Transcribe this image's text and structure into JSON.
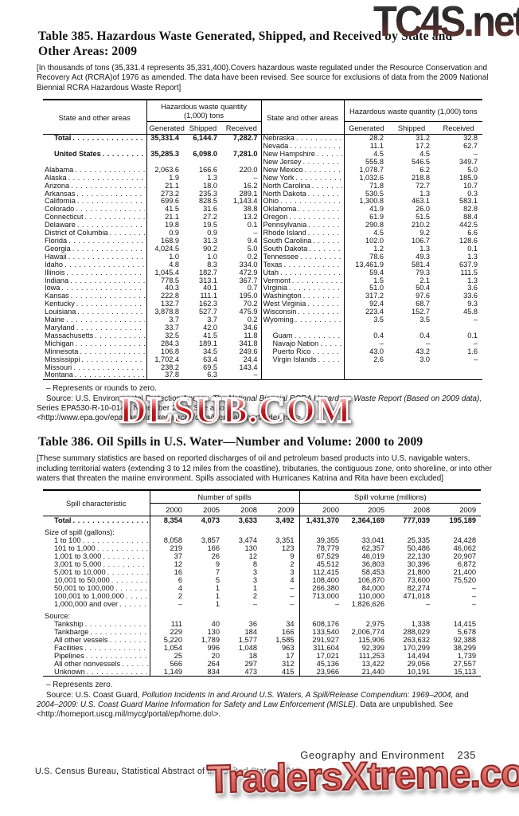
{
  "watermarks": {
    "top": "TC4S.net",
    "middle": "DLSUB.COM",
    "bottom": "TradersXtreme.com"
  },
  "colors": {
    "dlsub_red": "#c11820",
    "traders_coral": "#d65f5c",
    "tc4s_maroon": "#8a5048"
  },
  "table385": {
    "title": "Table 385. Hazardous Waste Generated, Shipped, and Received by State and Other Areas: 2009",
    "note": "[In thousands of tons (35,331.4 represents 35,331,400).Covers hazardous waste regulated under the Resource Conservation and Recovery Act (RCRA)of 1976 as amended. The data have been revised. See source for exclusions of data from the 2009 National Biennial RCRA Hazardous Waste Report]",
    "stub_header": "State and other areas",
    "group_header": "Hazardous waste quantity (1,000) tons",
    "sub_headers": [
      "Generated",
      "Shipped",
      "Received"
    ],
    "rows": [
      {
        "l": {
          "t": "Total",
          "v": [
            "35,331.4",
            "6,144.7",
            "7,282.7"
          ],
          "b": true,
          "i": true
        },
        "r": {
          "t": "Nebraska",
          "v": [
            "28.2",
            "31.2",
            "32.8"
          ]
        }
      },
      {
        "l": null,
        "r": {
          "t": "Nevada",
          "v": [
            "11.1",
            "17.2",
            "62.7"
          ]
        }
      },
      {
        "l": {
          "t": "United States",
          "v": [
            "35,285.3",
            "6,098.0",
            "7,281.0"
          ],
          "b": true,
          "i": true
        },
        "r": {
          "t": "New Hampshire",
          "v": [
            "4.5",
            "4.5",
            "–"
          ]
        }
      },
      {
        "l": null,
        "r": {
          "t": "New Jersey",
          "v": [
            "555.8",
            "546.5",
            "349.7"
          ]
        }
      },
      {
        "l": {
          "t": "Alabama",
          "v": [
            "2,063.6",
            "166.6",
            "220.0"
          ]
        },
        "r": {
          "t": "New Mexico",
          "v": [
            "1,078.7",
            "6.2",
            "5.0"
          ]
        }
      },
      {
        "l": {
          "t": "Alaska",
          "v": [
            "1.9",
            "1.3",
            "–"
          ]
        },
        "r": {
          "t": "New York",
          "v": [
            "1,032.6",
            "218.8",
            "185.9"
          ]
        }
      },
      {
        "l": {
          "t": "Arizona",
          "v": [
            "21.1",
            "18.0",
            "16.2"
          ]
        },
        "r": {
          "t": "North Carolina",
          "v": [
            "71.8",
            "72.7",
            "10.7"
          ]
        }
      },
      {
        "l": {
          "t": "Arkansas",
          "v": [
            "273.2",
            "235.3",
            "289.1"
          ]
        },
        "r": {
          "t": "North Dakota",
          "v": [
            "530.5",
            "1.3",
            "0.3"
          ]
        }
      },
      {
        "l": {
          "t": "California",
          "v": [
            "699.6",
            "828.5",
            "1,143.4"
          ]
        },
        "r": {
          "t": "Ohio",
          "v": [
            "1,300.8",
            "463.1",
            "583.1"
          ]
        }
      },
      {
        "l": {
          "t": "Colorado",
          "v": [
            "41.5",
            "31.6",
            "38.8"
          ]
        },
        "r": {
          "t": "Oklahoma",
          "v": [
            "41.9",
            "26.0",
            "82.8"
          ]
        }
      },
      {
        "l": {
          "t": "Connecticut",
          "v": [
            "21.1",
            "27.2",
            "13.2"
          ]
        },
        "r": {
          "t": "Oregon",
          "v": [
            "61.9",
            "51.5",
            "88.4"
          ]
        }
      },
      {
        "l": {
          "t": "Delaware",
          "v": [
            "19.8",
            "19.5",
            "0.1"
          ]
        },
        "r": {
          "t": "Pennsylvania",
          "v": [
            "290.8",
            "210.2",
            "442.5"
          ]
        }
      },
      {
        "l": {
          "t": "District of Columbia",
          "v": [
            "0.9",
            "0.9",
            "–"
          ]
        },
        "r": {
          "t": "Rhode Island",
          "v": [
            "4.5",
            "9.2",
            "6.6"
          ]
        }
      },
      {
        "l": {
          "t": "Florida",
          "v": [
            "168.9",
            "31.3",
            "9.4"
          ]
        },
        "r": {
          "t": "South Carolina",
          "v": [
            "102.0",
            "106.7",
            "128.6"
          ]
        }
      },
      {
        "l": {
          "t": "Georgia",
          "v": [
            "4,024.5",
            "90.2",
            "5.0"
          ]
        },
        "r": {
          "t": "South Dakota",
          "v": [
            "1.2",
            "1.3",
            "0.1"
          ]
        }
      },
      {
        "l": {
          "t": "Hawaii",
          "v": [
            "1.0",
            "1.0",
            "0.2"
          ]
        },
        "r": {
          "t": "Tennessee",
          "v": [
            "78.6",
            "49.3",
            "1.3"
          ]
        }
      },
      {
        "l": {
          "t": "Idaho",
          "v": [
            "4.8",
            "8.3",
            "334.0"
          ]
        },
        "r": {
          "t": "Texas",
          "v": [
            "13,461.9",
            "581.4",
            "637.9"
          ]
        }
      },
      {
        "l": {
          "t": "Illinois",
          "v": [
            "1,045.4",
            "182.7",
            "472.9"
          ]
        },
        "r": {
          "t": "Utah",
          "v": [
            "59.4",
            "79.3",
            "111.5"
          ]
        }
      },
      {
        "l": {
          "t": "Indiana",
          "v": [
            "778.5",
            "313.1",
            "367.7"
          ]
        },
        "r": {
          "t": "Vermont",
          "v": [
            "1.5",
            "2.1",
            "1.3"
          ]
        }
      },
      {
        "l": {
          "t": "Iowa",
          "v": [
            "40.3",
            "40.1",
            "0.7"
          ]
        },
        "r": {
          "t": "Virginia",
          "v": [
            "51.0",
            "50.4",
            "3.6"
          ]
        }
      },
      {
        "l": {
          "t": "Kansas",
          "v": [
            "222.8",
            "111.1",
            "195.0"
          ]
        },
        "r": {
          "t": "Washington",
          "v": [
            "317.2",
            "97.6",
            "33.6"
          ]
        }
      },
      {
        "l": {
          "t": "Kentucky",
          "v": [
            "132.7",
            "162.3",
            "70.2"
          ]
        },
        "r": {
          "t": "West Virginia",
          "v": [
            "92.4",
            "68.7",
            "9.3"
          ]
        }
      },
      {
        "l": {
          "t": "Louisiana",
          "v": [
            "3,878.8",
            "527.7",
            "475.9"
          ]
        },
        "r": {
          "t": "Wisconsin",
          "v": [
            "223.4",
            "152.7",
            "45.8"
          ]
        }
      },
      {
        "l": {
          "t": "Maine",
          "v": [
            "3.7",
            "3.7",
            "0.2"
          ]
        },
        "r": {
          "t": "Wyoming",
          "v": [
            "3.5",
            "3.5",
            "–"
          ]
        }
      },
      {
        "l": {
          "t": "Maryland",
          "v": [
            "33.7",
            "42.0",
            "34.6"
          ]
        },
        "r": null
      },
      {
        "l": {
          "t": "Massachusetts",
          "v": [
            "32.5",
            "41.5",
            "11.8"
          ]
        },
        "r": {
          "t": "Guam",
          "v": [
            "0.4",
            "0.4",
            "0.1"
          ],
          "i": true
        }
      },
      {
        "l": {
          "t": "Michigan",
          "v": [
            "284.3",
            "189.1",
            "341.8"
          ]
        },
        "r": {
          "t": "Navajo Nation",
          "v": [
            "–",
            "–",
            "–"
          ],
          "i": true
        }
      },
      {
        "l": {
          "t": "Minnesota",
          "v": [
            "106.8",
            "34.5",
            "249.6"
          ]
        },
        "r": {
          "t": "Puerto Rico",
          "v": [
            "43.0",
            "43.2",
            "1.6"
          ],
          "i": true
        }
      },
      {
        "l": {
          "t": "Mississippi",
          "v": [
            "1,702.4",
            "63.4",
            "24.4"
          ]
        },
        "r": {
          "t": "Virgin Islands",
          "v": [
            "2.6",
            "3.0",
            "–"
          ],
          "i": true
        }
      },
      {
        "l": {
          "t": "Missouri",
          "v": [
            "238.2",
            "69.5",
            "143.4"
          ]
        },
        "r": null
      },
      {
        "l": {
          "t": "Montana",
          "v": [
            "37.8",
            "6.3",
            "–"
          ]
        },
        "r": null
      }
    ],
    "footnote": "– Represents or rounds to zero.",
    "source_segments": [
      {
        "t": "Source: U.S. Environmental Protection Agency, "
      },
      {
        "t": "The National Biennial RCRA Hazardous Waste Report (Based on 2009 data)",
        "i": true
      },
      {
        "t": ", Series EPA530-R-10-014a, November 2010. See also <http://www.epa.gov/epawaste/inforesources/data/biennialreport/index.htm>."
      }
    ]
  },
  "table386": {
    "title": "Table 386. Oil Spills in U.S. Water—Number and Volume: 2000 to 2009",
    "note": "[These summary statistics are based on reported discharges of oil and petroleum based products into U.S. navigable waters, including territorial waters (extending 3 to 12 miles from the coastline), tributaries, the contiguous zone, onto shoreline, or into other waters that threaten the marine environment. Spills associated with Hurricanes Katrina and Rita have been excluded]",
    "stub_header": "Spill characteristic",
    "group_headers": [
      "Number of spills",
      "Spill volume (millions)"
    ],
    "years": [
      "2000",
      "2005",
      "2008",
      "2009"
    ],
    "rows": [
      {
        "t": "Total",
        "v": [
          "8,354",
          "4,073",
          "3,633",
          "3,492",
          "1,431,370",
          "2,364,169",
          "777,039",
          "195,189"
        ],
        "b": true,
        "i": true
      },
      {
        "blank": true
      },
      {
        "t": "Size of spill (gallons):",
        "sec": true
      },
      {
        "t": "1 to 100",
        "v": [
          "8,058",
          "3,857",
          "3,474",
          "3,351",
          "39,355",
          "33,041",
          "25,335",
          "24,428"
        ],
        "i": true
      },
      {
        "t": "101 to 1,000",
        "v": [
          "219",
          "166",
          "130",
          "123",
          "78,779",
          "62,357",
          "50,486",
          "46,062"
        ],
        "i": true
      },
      {
        "t": "1,001 to 3,000",
        "v": [
          "37",
          "26",
          "12",
          "9",
          "67,529",
          "46,019",
          "22,130",
          "20,907"
        ],
        "i": true
      },
      {
        "t": "3,001 to 5,000",
        "v": [
          "12",
          "9",
          "8",
          "2",
          "45,512",
          "36,803",
          "30,396",
          "6,872"
        ],
        "i": true
      },
      {
        "t": "5,001 to 10,000",
        "v": [
          "16",
          "7",
          "3",
          "3",
          "112,415",
          "58,453",
          "21,800",
          "21,400"
        ],
        "i": true
      },
      {
        "t": "10,001 to 50,000",
        "v": [
          "6",
          "5",
          "3",
          "4",
          "108,400",
          "106,870",
          "73,600",
          "75,520"
        ],
        "i": true
      },
      {
        "t": "50,001 to 100,000",
        "v": [
          "4",
          "1",
          "1",
          "–",
          "266,380",
          "84,000",
          "82,274",
          "–"
        ],
        "i": true
      },
      {
        "t": "100,001 to 1,000,000",
        "v": [
          "2",
          "1",
          "2",
          "–",
          "713,000",
          "110,000",
          "471,018",
          "–"
        ],
        "i": true
      },
      {
        "t": "1,000,000 and over",
        "v": [
          "–",
          "1",
          "–",
          "–",
          "–",
          "1,826,626",
          "–",
          "–"
        ],
        "i": true
      },
      {
        "blank": true
      },
      {
        "t": "Source:",
        "sec": true
      },
      {
        "t": "Tankship",
        "v": [
          "111",
          "40",
          "36",
          "34",
          "608,176",
          "2,975",
          "1,338",
          "14,415"
        ],
        "i": true
      },
      {
        "t": "Tankbarge",
        "v": [
          "229",
          "130",
          "184",
          "166",
          "133,540",
          "2,006,774",
          "288,029",
          "5,678"
        ],
        "i": true
      },
      {
        "t": "All other vessels",
        "v": [
          "5,220",
          "1,789",
          "1,577",
          "1,585",
          "291,927",
          "115,906",
          "263,632",
          "92,388"
        ],
        "i": true
      },
      {
        "t": "Facilities",
        "v": [
          "1,054",
          "996",
          "1,048",
          "963",
          "311,604",
          "92,399",
          "170,299",
          "38,299"
        ],
        "i": true
      },
      {
        "t": "Pipelines",
        "v": [
          "25",
          "20",
          "18",
          "17",
          "17,021",
          "111,253",
          "14,494",
          "1,739"
        ],
        "i": true
      },
      {
        "t": "All other nonvessels",
        "v": [
          "566",
          "264",
          "297",
          "312",
          "45,136",
          "13,422",
          "29,056",
          "27,557"
        ],
        "i": true
      },
      {
        "t": "Unknown",
        "v": [
          "1,149",
          "834",
          "473",
          "415",
          "23,966",
          "21,440",
          "10,191",
          "15,113"
        ],
        "i": true
      }
    ],
    "footnote": "– Represents zero.",
    "source_segments": [
      {
        "t": "Source: U.S. Coast Guard, "
      },
      {
        "t": "Pollution Incidents In and Around U.S. Waters, A Spill/Release Compendium: 1969–2004,",
        "i": true
      },
      {
        "t": " and "
      },
      {
        "t": "2004–2009: U.S. Coast Guard Marine Information for Safety and Law Enforcement (MISLE)",
        "i": true
      },
      {
        "t": ". Data are unpublished. See <http://homeport.uscg.mil/mycg/portal/ep/home.do\\>."
      }
    ]
  },
  "footer": {
    "section": "Geography and Environment",
    "page": "235",
    "credit": "U.S. Census Bureau, Statistical Abstract of the United States: 2012"
  }
}
